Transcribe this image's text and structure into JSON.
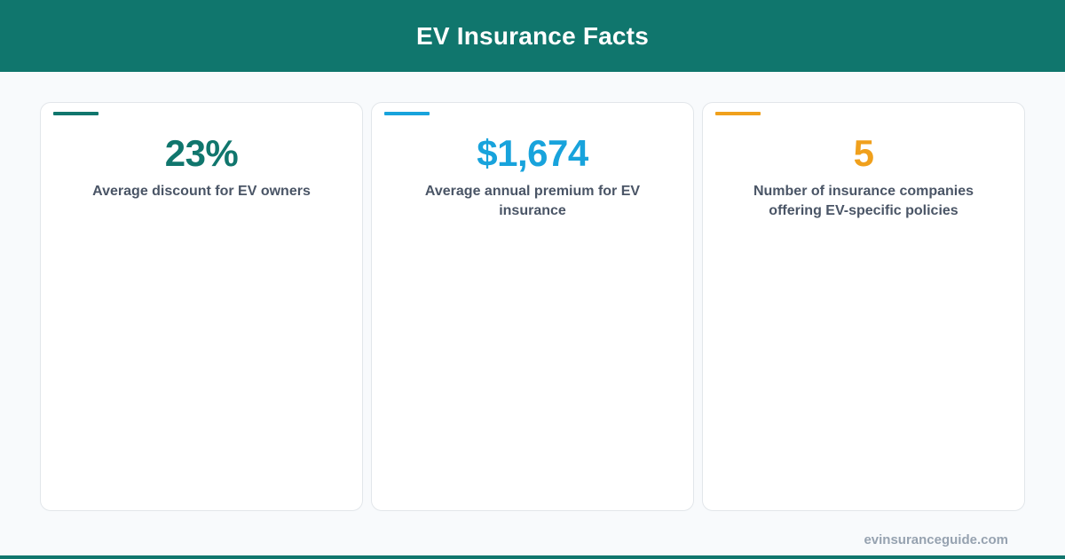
{
  "header": {
    "title": "EV Insurance Facts"
  },
  "colors": {
    "header_bg": "#10766d",
    "teal": "#10766d",
    "blue": "#18a3dc",
    "orange": "#f0a01c"
  },
  "cards": [
    {
      "value": "23%",
      "label": "Average discount for EV owners",
      "accent_color": "#10766d"
    },
    {
      "value": "$1,674",
      "label": "Average annual premium for EV insurance",
      "accent_color": "#18a3dc"
    },
    {
      "value": "5",
      "label": "Number of insurance companies offering EV-specific policies",
      "accent_color": "#f0a01c"
    }
  ],
  "footer": {
    "url": "evinsuranceguide.com"
  }
}
